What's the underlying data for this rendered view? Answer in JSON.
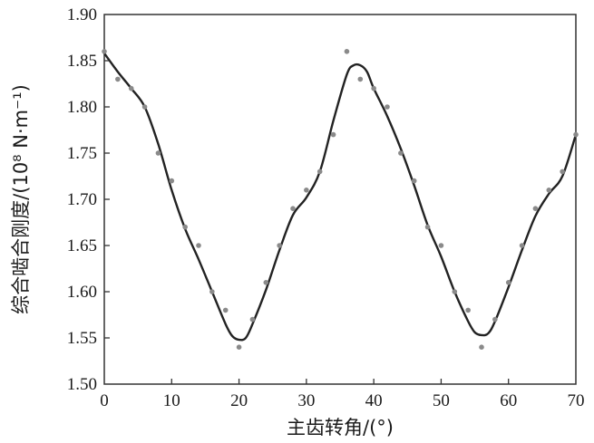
{
  "chart_data": {
    "type": "scatter",
    "xlabel": "主齿转角/(°)",
    "ylabel": "综合啮合刚度/(10⁸ N·m⁻¹)",
    "xlim": [
      0,
      70
    ],
    "ylim": [
      1.5,
      1.9
    ],
    "x_ticks": [
      "0",
      "10",
      "20",
      "30",
      "40",
      "50",
      "60",
      "70"
    ],
    "y_ticks": [
      "1.50",
      "1.55",
      "1.60",
      "1.65",
      "1.70",
      "1.75",
      "1.80",
      "1.85",
      "1.90"
    ],
    "grid": false,
    "series": [
      {
        "kind": "points",
        "color": "#8a8a8a",
        "points": [
          [
            0,
            1.86
          ],
          [
            2,
            1.83
          ],
          [
            4,
            1.82
          ],
          [
            6,
            1.8
          ],
          [
            8,
            1.75
          ],
          [
            10,
            1.72
          ],
          [
            12,
            1.67
          ],
          [
            14,
            1.65
          ],
          [
            16,
            1.6
          ],
          [
            18,
            1.58
          ],
          [
            20,
            1.54
          ],
          [
            22,
            1.57
          ],
          [
            24,
            1.61
          ],
          [
            26,
            1.65
          ],
          [
            28,
            1.69
          ],
          [
            30,
            1.71
          ],
          [
            32,
            1.73
          ],
          [
            34,
            1.77
          ],
          [
            36,
            1.86
          ],
          [
            38,
            1.83
          ],
          [
            40,
            1.82
          ],
          [
            42,
            1.8
          ],
          [
            44,
            1.75
          ],
          [
            46,
            1.72
          ],
          [
            48,
            1.67
          ],
          [
            50,
            1.65
          ],
          [
            52,
            1.6
          ],
          [
            54,
            1.58
          ],
          [
            56,
            1.54
          ],
          [
            58,
            1.57
          ],
          [
            60,
            1.61
          ],
          [
            62,
            1.65
          ],
          [
            64,
            1.69
          ],
          [
            66,
            1.71
          ],
          [
            68,
            1.73
          ],
          [
            70,
            1.77
          ]
        ]
      },
      {
        "kind": "curve",
        "color": "#222222",
        "points": [
          [
            0,
            1.858
          ],
          [
            2,
            1.838
          ],
          [
            4,
            1.82
          ],
          [
            6,
            1.8
          ],
          [
            8,
            1.76
          ],
          [
            10,
            1.71
          ],
          [
            12,
            1.668
          ],
          [
            14,
            1.635
          ],
          [
            16,
            1.6
          ],
          [
            18,
            1.565
          ],
          [
            19,
            1.552
          ],
          [
            20,
            1.548
          ],
          [
            21,
            1.55
          ],
          [
            22,
            1.565
          ],
          [
            24,
            1.602
          ],
          [
            26,
            1.645
          ],
          [
            28,
            1.683
          ],
          [
            30,
            1.702
          ],
          [
            32,
            1.73
          ],
          [
            34,
            1.785
          ],
          [
            36,
            1.835
          ],
          [
            37,
            1.845
          ],
          [
            38,
            1.845
          ],
          [
            39,
            1.838
          ],
          [
            40,
            1.82
          ],
          [
            42,
            1.79
          ],
          [
            44,
            1.755
          ],
          [
            46,
            1.715
          ],
          [
            48,
            1.672
          ],
          [
            50,
            1.638
          ],
          [
            52,
            1.6
          ],
          [
            54,
            1.568
          ],
          [
            55,
            1.556
          ],
          [
            56,
            1.553
          ],
          [
            57,
            1.555
          ],
          [
            58,
            1.568
          ],
          [
            60,
            1.605
          ],
          [
            62,
            1.645
          ],
          [
            64,
            1.682
          ],
          [
            66,
            1.706
          ],
          [
            68,
            1.725
          ],
          [
            70,
            1.77
          ]
        ]
      }
    ]
  }
}
